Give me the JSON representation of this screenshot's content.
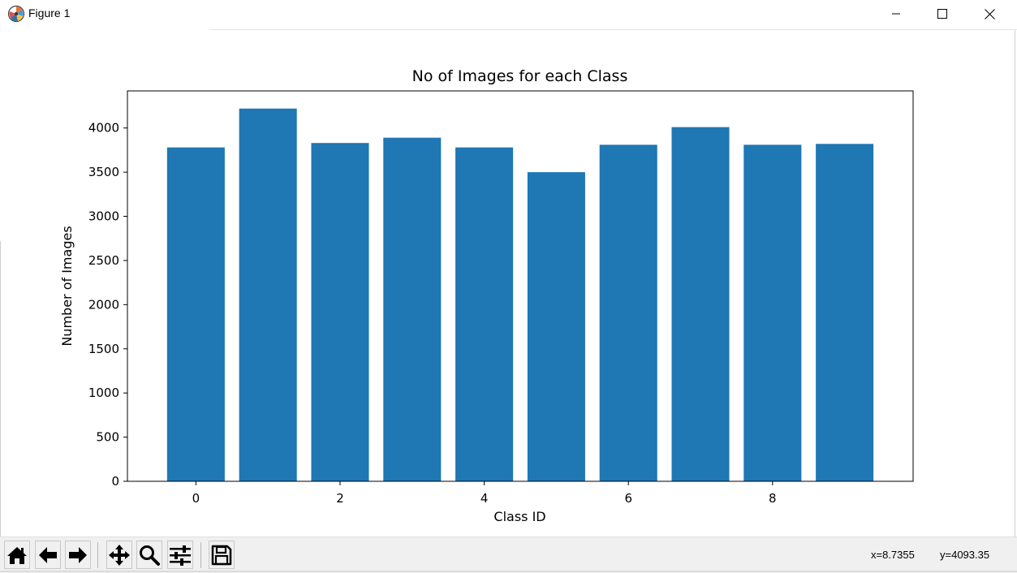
{
  "window": {
    "title": "Figure 1",
    "controls": [
      "minimize",
      "maximize",
      "close"
    ]
  },
  "chart_data": {
    "type": "bar",
    "title": "No of Images for each Class",
    "xlabel": "Class ID",
    "ylabel": "Number of Images",
    "categories": [
      0,
      1,
      2,
      3,
      4,
      5,
      6,
      7,
      8,
      9
    ],
    "values": [
      3780,
      4220,
      3830,
      3890,
      3780,
      3500,
      3810,
      4010,
      3810,
      3820
    ],
    "xticks": [
      0,
      2,
      4,
      6,
      8
    ],
    "yticks": [
      0,
      500,
      1000,
      1500,
      2000,
      2500,
      3000,
      3500,
      4000
    ],
    "xlim": [
      -0.95,
      9.95
    ],
    "ylim": [
      0,
      4420
    ],
    "bar_color": "#1f77b4",
    "grid": false,
    "legend": "none"
  },
  "toolbar": {
    "buttons": [
      {
        "name": "home-icon",
        "tooltip": "Reset original view"
      },
      {
        "name": "back-arrow-icon",
        "tooltip": "Back to previous view"
      },
      {
        "name": "forward-arrow-icon",
        "tooltip": "Forward to next view"
      },
      {
        "name": "pan-icon",
        "tooltip": "Pan axes"
      },
      {
        "name": "zoom-icon",
        "tooltip": "Zoom to rectangle"
      },
      {
        "name": "subplots-icon",
        "tooltip": "Configure subplots"
      },
      {
        "name": "save-icon",
        "tooltip": "Save the figure"
      }
    ],
    "coord_x": "x=8.7355",
    "coord_y": "y=4093.35"
  }
}
